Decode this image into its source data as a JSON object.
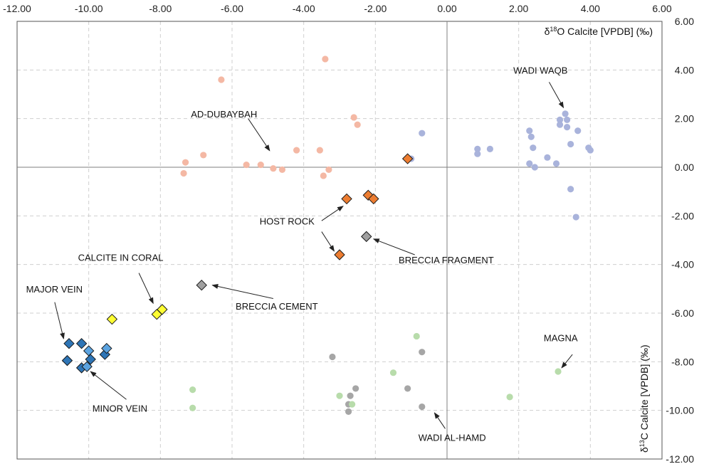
{
  "chart_data": {
    "type": "scatter",
    "xlabel": {
      "pre": "δ",
      "sup": "18",
      "post": "O Calcite [VPDB] (‰)"
    },
    "ylabel": {
      "pre": "δ",
      "sup": "13",
      "post": "C Calcite [VPDB] (‰)"
    },
    "xlim": [
      -12,
      6
    ],
    "ylim": [
      -12,
      6
    ],
    "x_ticks": [
      -12,
      -10,
      -8,
      -6,
      -4,
      -2,
      0,
      2,
      4,
      6
    ],
    "y_ticks": [
      -12,
      -10,
      -8,
      -6,
      -4,
      -2,
      0,
      2,
      4,
      6
    ],
    "x_tick_labels": [
      "-12.00",
      "-10.00",
      "-8.00",
      "-6.00",
      "-4.00",
      "-2.00",
      "0.00",
      "2.00",
      "4.00",
      "6.00"
    ],
    "y_tick_labels": [
      "-12.00",
      "-10.00",
      "-8.00",
      "-6.00",
      "-4.00",
      "-2.00",
      "0.00",
      "2.00",
      "4.00",
      "6.00"
    ],
    "grid": true,
    "series": [
      {
        "name": "Ad-Dubaybah",
        "marker": "circle",
        "color": "#f4b8a4",
        "points": [
          [
            -3.4,
            4.45
          ],
          [
            -6.3,
            3.6
          ],
          [
            -2.6,
            2.05
          ],
          [
            -2.5,
            1.75
          ],
          [
            -7.3,
            0.2
          ],
          [
            -6.8,
            0.5
          ],
          [
            -7.35,
            -0.25
          ],
          [
            -5.6,
            0.1
          ],
          [
            -5.2,
            0.1
          ],
          [
            -4.85,
            -0.05
          ],
          [
            -4.6,
            -0.1
          ],
          [
            -4.2,
            0.7
          ],
          [
            -3.55,
            0.7
          ],
          [
            -3.3,
            -0.1
          ],
          [
            -3.45,
            -0.35
          ]
        ]
      },
      {
        "name": "Wadi Waqb",
        "marker": "circle",
        "color": "#a9b3db",
        "points": [
          [
            -0.7,
            1.4
          ],
          [
            -1.0,
            0.35
          ],
          [
            0.85,
            0.75
          ],
          [
            0.85,
            0.55
          ],
          [
            1.2,
            0.75
          ],
          [
            2.3,
            1.5
          ],
          [
            2.35,
            1.25
          ],
          [
            2.4,
            0.8
          ],
          [
            2.3,
            0.15
          ],
          [
            2.45,
            0.0
          ],
          [
            2.8,
            0.4
          ],
          [
            3.05,
            0.15
          ],
          [
            3.15,
            1.95
          ],
          [
            3.15,
            1.75
          ],
          [
            3.3,
            2.2
          ],
          [
            3.35,
            1.95
          ],
          [
            3.35,
            1.65
          ],
          [
            3.65,
            1.5
          ],
          [
            3.45,
            0.95
          ],
          [
            3.95,
            0.8
          ],
          [
            4.0,
            0.7
          ],
          [
            3.45,
            -0.9
          ],
          [
            3.6,
            -2.05
          ]
        ]
      },
      {
        "name": "Wadi Al-Hamd (grey)",
        "marker": "circle",
        "color": "#a6a6a6",
        "points": [
          [
            -3.2,
            -7.8
          ],
          [
            -0.7,
            -7.6
          ],
          [
            -2.55,
            -9.1
          ],
          [
            -2.7,
            -9.4
          ],
          [
            -2.75,
            -9.75
          ],
          [
            -2.75,
            -10.05
          ],
          [
            -1.1,
            -9.1
          ],
          [
            -0.7,
            -9.85
          ]
        ]
      },
      {
        "name": "Wadi Al-Hamd (green)",
        "marker": "circle",
        "color": "#b8dcab",
        "points": [
          [
            -0.85,
            -6.95
          ],
          [
            -1.5,
            -8.45
          ],
          [
            -7.1,
            -9.15
          ],
          [
            -7.1,
            -9.9
          ],
          [
            -3.0,
            -9.4
          ],
          [
            -2.65,
            -9.75
          ],
          [
            1.75,
            -9.45
          ],
          [
            3.1,
            -8.4
          ]
        ]
      },
      {
        "name": "Host Rock",
        "marker": "diamond",
        "color": "#ed7d31",
        "points": [
          [
            -1.1,
            0.35
          ],
          [
            -2.8,
            -1.3
          ],
          [
            -2.2,
            -1.15
          ],
          [
            -2.05,
            -1.3
          ],
          [
            -3.0,
            -3.6
          ]
        ]
      },
      {
        "name": "Breccia Fragment",
        "marker": "diamond",
        "color": "#a0a0a0",
        "points": [
          [
            -2.25,
            -2.85
          ]
        ]
      },
      {
        "name": "Breccia Cement",
        "marker": "diamond",
        "color": "#a0a0a0",
        "points": [
          [
            -6.85,
            -4.85
          ]
        ]
      },
      {
        "name": "Calcite in Coral",
        "marker": "diamond",
        "color": "#ffff33",
        "points": [
          [
            -9.35,
            -6.25
          ],
          [
            -8.1,
            -6.05
          ],
          [
            -7.95,
            -5.85
          ]
        ]
      },
      {
        "name": "Major Vein",
        "marker": "diamond",
        "color": "#2e75b6",
        "points": [
          [
            -10.55,
            -7.25
          ],
          [
            -10.2,
            -7.25
          ],
          [
            -10.6,
            -7.95
          ],
          [
            -10.2,
            -8.25
          ],
          [
            -9.95,
            -7.9
          ],
          [
            -9.55,
            -7.7
          ]
        ]
      },
      {
        "name": "Minor Vein",
        "marker": "diamond",
        "color": "#5ba3e0",
        "points": [
          [
            -10.0,
            -7.55
          ],
          [
            -9.5,
            -7.45
          ],
          [
            -10.05,
            -8.2
          ]
        ]
      }
    ],
    "annotations": [
      {
        "text": "AD-DUBAYBAH",
        "anchor": "end",
        "label_at": [
          -5.3,
          2.05
        ],
        "line_from": [
          -5.55,
          2.0
        ],
        "arrow_to": [
          -4.95,
          0.68
        ]
      },
      {
        "text": "WADI WAQB",
        "anchor": "start",
        "label_at": [
          1.85,
          3.85
        ],
        "line_from": [
          2.85,
          3.5
        ],
        "arrow_to": [
          3.25,
          2.45
        ]
      },
      {
        "text": "HOST ROCK",
        "anchor": "end",
        "label_at": [
          -3.7,
          -2.35
        ],
        "lines": [
          {
            "from": [
              -3.5,
              -2.2
            ],
            "to": [
              -2.9,
              -1.6
            ]
          },
          {
            "from": [
              -3.5,
              -2.65
            ],
            "to": [
              -3.15,
              -3.45
            ]
          }
        ]
      },
      {
        "text": "BRECCIA FRAGMENT",
        "anchor": "start",
        "label_at": [
          -1.35,
          -3.95
        ],
        "line_from": [
          -0.9,
          -3.6
        ],
        "arrow_to": [
          -2.05,
          -2.95
        ]
      },
      {
        "text": "CALCITE IN CORAL",
        "anchor": "start",
        "label_at": [
          -10.3,
          -3.85
        ],
        "line_from": [
          -8.6,
          -4.35
        ],
        "arrow_to": [
          -8.2,
          -5.6
        ]
      },
      {
        "text": "BRECCIA CEMENT",
        "anchor": "start",
        "label_at": [
          -5.9,
          -5.85
        ],
        "line_from": [
          -4.85,
          -5.4
        ],
        "arrow_to": [
          -6.55,
          -4.85
        ]
      },
      {
        "text": "MAJOR VEIN",
        "anchor": "start",
        "label_at": [
          -11.75,
          -5.15
        ],
        "line_from": [
          -10.95,
          -5.55
        ],
        "arrow_to": [
          -10.7,
          -7.05
        ]
      },
      {
        "text": "MINOR VEIN",
        "anchor": "start",
        "label_at": [
          -9.9,
          -10.05
        ],
        "line_from": [
          -8.95,
          -9.55
        ],
        "arrow_to": [
          -9.95,
          -8.4
        ]
      },
      {
        "text": "MAGNA",
        "anchor": "start",
        "label_at": [
          2.7,
          -7.15
        ],
        "line_from": [
          3.5,
          -7.7
        ],
        "arrow_to": [
          3.2,
          -8.25
        ]
      },
      {
        "text": "WADI AL-HAMD",
        "anchor": "start",
        "label_at": [
          -0.8,
          -11.25
        ],
        "line_from": [
          -0.05,
          -10.75
        ],
        "arrow_to": [
          -0.35,
          -10.1
        ]
      }
    ]
  }
}
